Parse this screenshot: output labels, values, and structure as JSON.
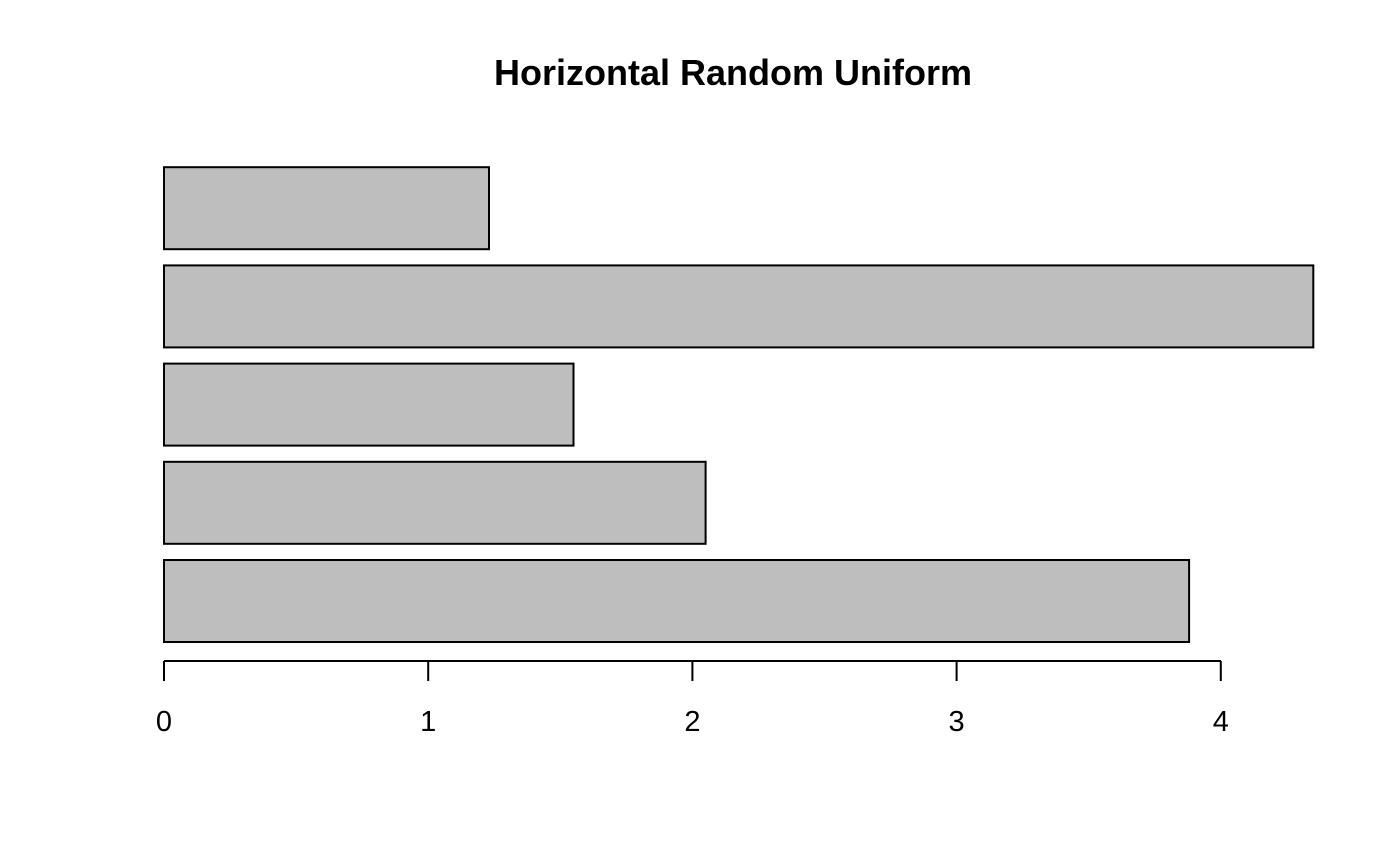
{
  "chart_data": {
    "type": "bar",
    "orientation": "horizontal",
    "title": "Horizontal Random Uniform",
    "xlabel": "",
    "ylabel": "",
    "values": [
      3.88,
      2.05,
      1.55,
      4.35,
      1.23
    ],
    "xlim": [
      0,
      4.35
    ],
    "x_ticks": [
      "0",
      "1",
      "2",
      "3",
      "4"
    ],
    "grid": false,
    "legend": "none",
    "bar_color": "#bebebe",
    "border_color": "#000000"
  }
}
